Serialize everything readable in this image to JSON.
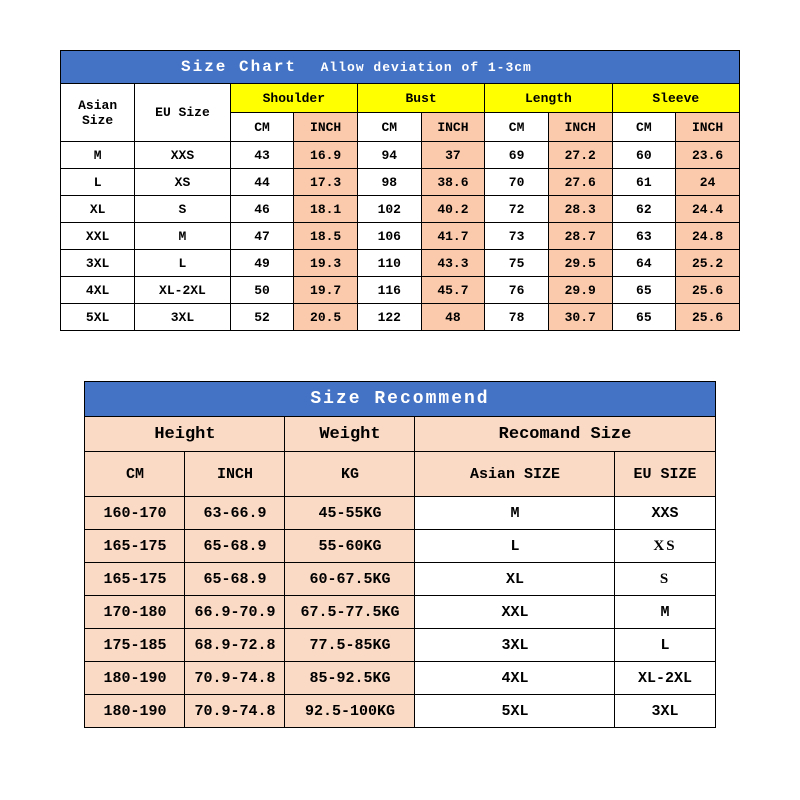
{
  "sizeChart": {
    "title": "Size Chart",
    "note": "Allow deviation of 1-3cm",
    "labels": {
      "asian": "Asian Size",
      "eu": "EU Size",
      "cm": "CM",
      "inch": "INCH"
    },
    "groups": [
      "Shoulder",
      "Bust",
      "Length",
      "Sleeve"
    ],
    "rows": [
      {
        "asian": "M",
        "eu": "XXS",
        "cm": [
          43,
          94,
          69,
          60
        ],
        "in": [
          16.9,
          37,
          27.2,
          23.6
        ]
      },
      {
        "asian": "L",
        "eu": "XS",
        "cm": [
          44,
          98,
          70,
          61
        ],
        "in": [
          17.3,
          38.6,
          27.6,
          24
        ]
      },
      {
        "asian": "XL",
        "eu": "S",
        "cm": [
          46,
          102,
          72,
          62
        ],
        "in": [
          18.1,
          40.2,
          28.3,
          24.4
        ]
      },
      {
        "asian": "XXL",
        "eu": "M",
        "cm": [
          47,
          106,
          73,
          63
        ],
        "in": [
          18.5,
          41.7,
          28.7,
          24.8
        ]
      },
      {
        "asian": "3XL",
        "eu": "L",
        "cm": [
          49,
          110,
          75,
          64
        ],
        "in": [
          19.3,
          43.3,
          29.5,
          25.2
        ]
      },
      {
        "asian": "4XL",
        "eu": "XL-2XL",
        "cm": [
          50,
          116,
          76,
          65
        ],
        "in": [
          19.7,
          45.7,
          29.9,
          25.6
        ]
      },
      {
        "asian": "5XL",
        "eu": "3XL",
        "cm": [
          52,
          122,
          78,
          65
        ],
        "in": [
          20.5,
          48,
          30.7,
          25.6
        ]
      }
    ]
  },
  "recommend": {
    "title": "Size Recommend",
    "labels": {
      "height": "Height",
      "weight": "Weight",
      "recSize": "Recomand Size",
      "cm": "CM",
      "inch": "INCH",
      "kg": "KG",
      "asian": "Asian SIZE",
      "eu": "EU SIZE"
    },
    "rows": [
      {
        "cm": "160-170",
        "in": "63-66.9",
        "kg": "45-55KG",
        "asian": "M",
        "eu": "XXS"
      },
      {
        "cm": "165-175",
        "in": "65-68.9",
        "kg": "55-60KG",
        "asian": "L",
        "eu": "XS"
      },
      {
        "cm": "165-175",
        "in": "65-68.9",
        "kg": "60-67.5KG",
        "asian": "XL",
        "eu": "S"
      },
      {
        "cm": "170-180",
        "in": "66.9-70.9",
        "kg": "67.5-77.5KG",
        "asian": "XXL",
        "eu": "M"
      },
      {
        "cm": "175-185",
        "in": "68.9-72.8",
        "kg": "77.5-85KG",
        "asian": "3XL",
        "eu": "L"
      },
      {
        "cm": "180-190",
        "in": "70.9-74.8",
        "kg": "85-92.5KG",
        "asian": "4XL",
        "eu": "XL-2XL"
      },
      {
        "cm": "180-190",
        "in": "70.9-74.8",
        "kg": "92.5-100KG",
        "asian": "5XL",
        "eu": "3XL"
      }
    ]
  },
  "colors": {
    "header": "#4472c4",
    "yellow": "#ffff00",
    "inch_bg": "#fbcaac",
    "rec_bg": "#fad9c5",
    "border": "#000000",
    "text_white": "#ffffff"
  }
}
